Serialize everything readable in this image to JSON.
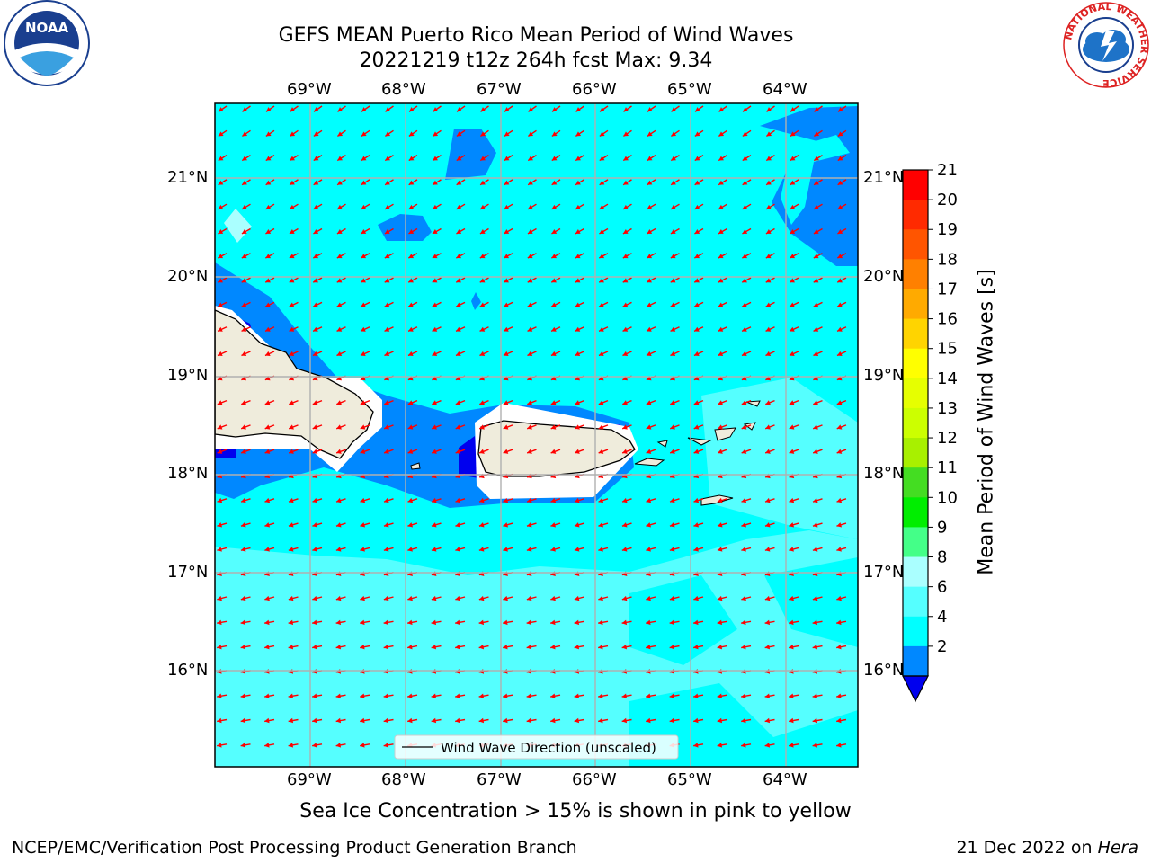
{
  "header": {
    "title_line1": "GEFS MEAN Puerto Rico Mean Period of Wind Waves",
    "title_line2": "20221219 t12z 264h fcst   Max: 9.34"
  },
  "caption": "Sea Ice Concentration > 15% is shown in pink to yellow",
  "footer": {
    "left": "NCEP/EMC/Verification Post Processing Product Generation Branch",
    "right_prefix": "21 Dec 2022 on ",
    "right_machine": "Hera"
  },
  "logos": {
    "noaa_text": "NOAA",
    "nws_ring_text": "NATIONAL WEATHER SERVICE"
  },
  "legend": {
    "label": "Wind Wave Direction (unscaled)"
  },
  "axes": {
    "lon_labels": [
      "69°W",
      "68°W",
      "67°W",
      "66°W",
      "65°W",
      "64°W"
    ],
    "lat_labels": [
      "21°N",
      "20°N",
      "19°N",
      "18°N",
      "17°N",
      "16°N"
    ]
  },
  "colorbar": {
    "label": "Mean Period of Wind Waves [s]",
    "ticks": [
      "21",
      "20",
      "19",
      "18",
      "17",
      "16",
      "15",
      "14",
      "13",
      "12",
      "11",
      "10",
      "9",
      "8",
      "6",
      "4",
      "2"
    ],
    "colors": [
      "#ff0000",
      "#ff2a00",
      "#ff5500",
      "#ff8000",
      "#ffaa00",
      "#ffd400",
      "#ffff00",
      "#e6ff00",
      "#ccff00",
      "#a8f000",
      "#44dd22",
      "#00ee00",
      "#44ff88",
      "#aaffff",
      "#55ffff",
      "#00ffff",
      "#0088ff"
    ],
    "under_color": "#0000ee"
  },
  "chart_data": {
    "type": "heatmap",
    "lon_range": [
      -70,
      -63.25
    ],
    "lat_range": [
      15,
      21.75
    ],
    "max_value": 9.34,
    "colors": {
      "ocean_4_6": "#00ffff",
      "ocean_6_8": "#55ffff",
      "ocean_8_9": "#aaffff",
      "ocean_2_4": "#0088ff",
      "ocean_lt_2": "#0000ee",
      "land": "#efecdc",
      "arrows": "#ff0000"
    }
  }
}
